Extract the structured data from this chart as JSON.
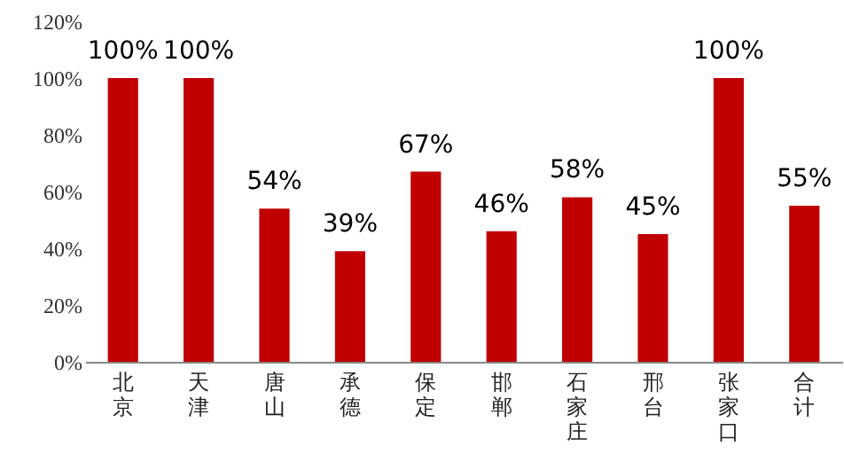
{
  "chart_data": {
    "type": "bar",
    "categories": [
      "北京",
      "天津",
      "唐山",
      "承德",
      "保定",
      "邯郸",
      "石家庄",
      "邢台",
      "张家口",
      "合计"
    ],
    "values": [
      100,
      100,
      54,
      39,
      67,
      46,
      58,
      45,
      100,
      55
    ],
    "value_labels": [
      "100%",
      "100%",
      "54%",
      "39%",
      "67%",
      "46%",
      "58%",
      "45%",
      "100%",
      "55%"
    ],
    "color": "#c00000",
    "ylim": [
      0,
      120
    ],
    "yticks": [
      {
        "value": 0,
        "label": "0%"
      },
      {
        "value": 20,
        "label": "20%"
      },
      {
        "value": 40,
        "label": "40%"
      },
      {
        "value": 60,
        "label": "60%"
      },
      {
        "value": 80,
        "label": "80%"
      },
      {
        "value": 100,
        "label": "100%"
      },
      {
        "value": 120,
        "label": "120%"
      }
    ],
    "grid": false
  }
}
